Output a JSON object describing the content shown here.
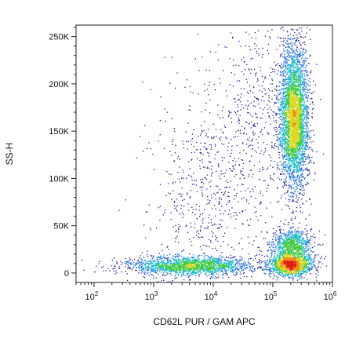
{
  "chart_data": {
    "type": "scatter",
    "style": "density dot plot (flow cytometry pseudocolor)",
    "xlabel": "CD62L PUR / GAM APC",
    "ylabel": "SS-H",
    "x_scale": "log",
    "xlim": [
      50,
      1000000
    ],
    "ylim": [
      -10000,
      262143
    ],
    "grid": false,
    "legend": "none",
    "x_ticks": [
      {
        "value": 100,
        "base": "10",
        "exp": "2"
      },
      {
        "value": 1000,
        "base": "10",
        "exp": "3"
      },
      {
        "value": 10000,
        "base": "10",
        "exp": "4"
      },
      {
        "value": 100000,
        "base": "10",
        "exp": "5"
      },
      {
        "value": 1000000,
        "base": "10",
        "exp": "6"
      }
    ],
    "y_ticks": [
      {
        "value": 0,
        "label": "0"
      },
      {
        "value": 50000,
        "label": "50K"
      },
      {
        "value": 100000,
        "label": "100K"
      },
      {
        "value": 150000,
        "label": "150K"
      },
      {
        "value": 200000,
        "label": "200K"
      },
      {
        "value": 250000,
        "label": "250K"
      }
    ],
    "density_colors": [
      "#1a1aa0",
      "#1f6fd6",
      "#16b8c8",
      "#3cc83c",
      "#d8d820",
      "#f08a10",
      "#e02010"
    ],
    "populations": [
      {
        "x_log_center": 5.35,
        "x_log_sd": 0.12,
        "y_center": 165000,
        "y_sd": 38000,
        "weight": 0.42
      },
      {
        "x_log_center": 5.3,
        "x_log_sd": 0.18,
        "y_center": 9000,
        "y_sd": 6000,
        "weight": 0.16
      },
      {
        "x_log_center": 5.3,
        "x_log_sd": 0.17,
        "y_center": 30000,
        "y_sd": 9000,
        "weight": 0.1
      },
      {
        "x_log_center": 3.6,
        "x_log_sd": 0.55,
        "y_center": 8000,
        "y_sd": 5000,
        "weight": 0.2
      },
      {
        "x_log_center": 3.9,
        "x_log_sd": 0.5,
        "y_center": 90000,
        "y_sd": 60000,
        "weight": 0.07
      },
      {
        "x_log_center": 4.8,
        "x_log_sd": 0.35,
        "y_center": 170000,
        "y_sd": 50000,
        "weight": 0.05
      }
    ]
  }
}
